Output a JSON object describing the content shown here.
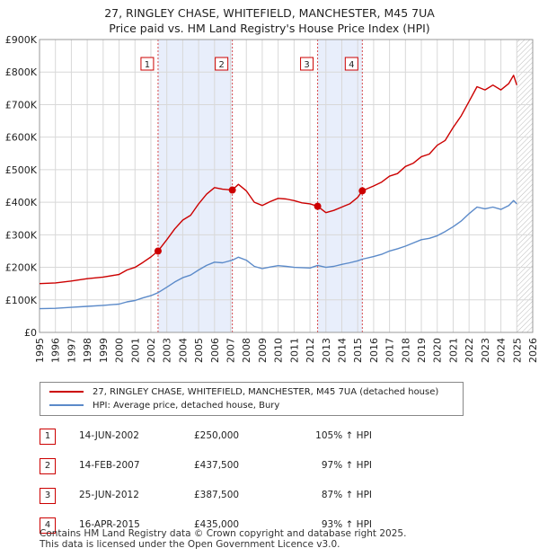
{
  "title": {
    "line1": "27, RINGLEY CHASE, WHITEFIELD, MANCHESTER, M45 7UA",
    "line2": "Price paid vs. HM Land Registry's House Price Index (HPI)"
  },
  "colors": {
    "property": "#cc0000",
    "hpi": "#5b8ac9",
    "shade": "#e8eefb",
    "grid": "#d8d8d8",
    "marker_border": "#cc0000"
  },
  "chart_data": {
    "type": "line",
    "title": "Price paid vs. HM Land Registry's House Price Index (HPI)",
    "xlabel": "",
    "ylabel": "",
    "xlim": [
      1995,
      2026
    ],
    "ylim": [
      0,
      900000
    ],
    "x_ticks": [
      "1995",
      "1996",
      "1997",
      "1998",
      "1999",
      "2000",
      "2001",
      "2002",
      "2003",
      "2004",
      "2005",
      "2006",
      "2007",
      "2008",
      "2009",
      "2010",
      "2011",
      "2012",
      "2013",
      "2014",
      "2015",
      "2016",
      "2017",
      "2018",
      "2019",
      "2020",
      "2021",
      "2022",
      "2023",
      "2024",
      "2025",
      "2026"
    ],
    "y_ticks": [
      {
        "value": 0,
        "label": "£0"
      },
      {
        "value": 100000,
        "label": "£100K"
      },
      {
        "value": 200000,
        "label": "£200K"
      },
      {
        "value": 300000,
        "label": "£300K"
      },
      {
        "value": 400000,
        "label": "£400K"
      },
      {
        "value": 500000,
        "label": "£500K"
      },
      {
        "value": 600000,
        "label": "£600K"
      },
      {
        "value": 700000,
        "label": "£700K"
      },
      {
        "value": 800000,
        "label": "£800K"
      },
      {
        "value": 900000,
        "label": "£900K"
      }
    ],
    "shaded_periods": [
      [
        2002.45,
        2007.12
      ],
      [
        2012.48,
        2015.29
      ]
    ],
    "hatched_from": 2025.0,
    "series": [
      {
        "name": "27, RINGLEY CHASE, WHITEFIELD, MANCHESTER, M45 7UA (detached house)",
        "color": "#cc0000",
        "x": [
          1995,
          1996,
          1997,
          1998,
          1999,
          2000,
          2000.5,
          2001,
          2001.5,
          2002,
          2002.45,
          2003,
          2003.5,
          2004,
          2004.5,
          2005,
          2005.5,
          2006,
          2006.5,
          2007.12,
          2007.5,
          2008,
          2008.5,
          2009,
          2009.5,
          2010,
          2010.5,
          2011,
          2011.5,
          2012,
          2012.48,
          2013,
          2013.5,
          2014,
          2014.5,
          2015,
          2015.29,
          2016,
          2016.5,
          2017,
          2017.5,
          2018,
          2018.5,
          2019,
          2019.5,
          2020,
          2020.5,
          2021,
          2021.5,
          2022,
          2022.5,
          2023,
          2023.5,
          2024,
          2024.5,
          2024.8,
          2025
        ],
        "values": [
          150000,
          152000,
          158000,
          165000,
          170000,
          178000,
          192000,
          200000,
          215000,
          232000,
          250000,
          285000,
          318000,
          345000,
          360000,
          395000,
          425000,
          445000,
          440000,
          437500,
          455000,
          435000,
          400000,
          390000,
          402000,
          412000,
          410000,
          405000,
          398000,
          395000,
          387500,
          368000,
          375000,
          385000,
          395000,
          415000,
          435000,
          450000,
          462000,
          480000,
          488000,
          510000,
          520000,
          540000,
          548000,
          575000,
          590000,
          630000,
          665000,
          710000,
          755000,
          745000,
          760000,
          745000,
          765000,
          790000,
          760000
        ]
      },
      {
        "name": "HPI: Average price, detached house, Bury",
        "color": "#5b8ac9",
        "x": [
          1995,
          1996,
          1997,
          1998,
          1999,
          2000,
          2000.5,
          2001,
          2001.5,
          2002,
          2002.45,
          2003,
          2003.5,
          2004,
          2004.5,
          2005,
          2005.5,
          2006,
          2006.5,
          2007.12,
          2007.5,
          2008,
          2008.5,
          2009,
          2009.5,
          2010,
          2010.5,
          2011,
          2011.5,
          2012,
          2012.48,
          2013,
          2013.5,
          2014,
          2014.5,
          2015,
          2015.29,
          2016,
          2016.5,
          2017,
          2017.5,
          2018,
          2018.5,
          2019,
          2019.5,
          2020,
          2020.5,
          2021,
          2021.5,
          2022,
          2022.5,
          2023,
          2023.5,
          2024,
          2024.5,
          2024.8,
          2025
        ],
        "values": [
          73000,
          74000,
          77000,
          80000,
          83000,
          87000,
          94000,
          98000,
          106000,
          113000,
          122000,
          139000,
          155000,
          168000,
          176000,
          192000,
          206000,
          216000,
          214000,
          222000,
          231000,
          222000,
          203000,
          196000,
          201000,
          205000,
          203000,
          200000,
          199000,
          198000,
          206000,
          200000,
          203000,
          209000,
          214000,
          220000,
          225000,
          233000,
          240000,
          250000,
          257000,
          265000,
          275000,
          285000,
          289000,
          297000,
          310000,
          325000,
          342000,
          365000,
          385000,
          380000,
          385000,
          378000,
          390000,
          405000,
          395000
        ]
      }
    ],
    "sale_markers": [
      {
        "label": "1",
        "x": 2002.45,
        "value": 250000
      },
      {
        "label": "2",
        "x": 2007.12,
        "value": 437500
      },
      {
        "label": "3",
        "x": 2012.48,
        "value": 387500
      },
      {
        "label": "4",
        "x": 2015.29,
        "value": 435000
      }
    ]
  },
  "legend": {
    "property": "27, RINGLEY CHASE, WHITEFIELD, MANCHESTER, M45 7UA (detached house)",
    "hpi": "HPI: Average price, detached house, Bury"
  },
  "sales": [
    {
      "num": "1",
      "date": "14-JUN-2002",
      "price": "£250,000",
      "hpi": "105% ↑ HPI"
    },
    {
      "num": "2",
      "date": "14-FEB-2007",
      "price": "£437,500",
      "hpi": "97% ↑ HPI"
    },
    {
      "num": "3",
      "date": "25-JUN-2012",
      "price": "£387,500",
      "hpi": "87% ↑ HPI"
    },
    {
      "num": "4",
      "date": "16-APR-2015",
      "price": "£435,000",
      "hpi": "93% ↑ HPI"
    }
  ],
  "footer": {
    "line1": "Contains HM Land Registry data © Crown copyright and database right 2025.",
    "line2": "This data is licensed under the Open Government Licence v3.0."
  }
}
